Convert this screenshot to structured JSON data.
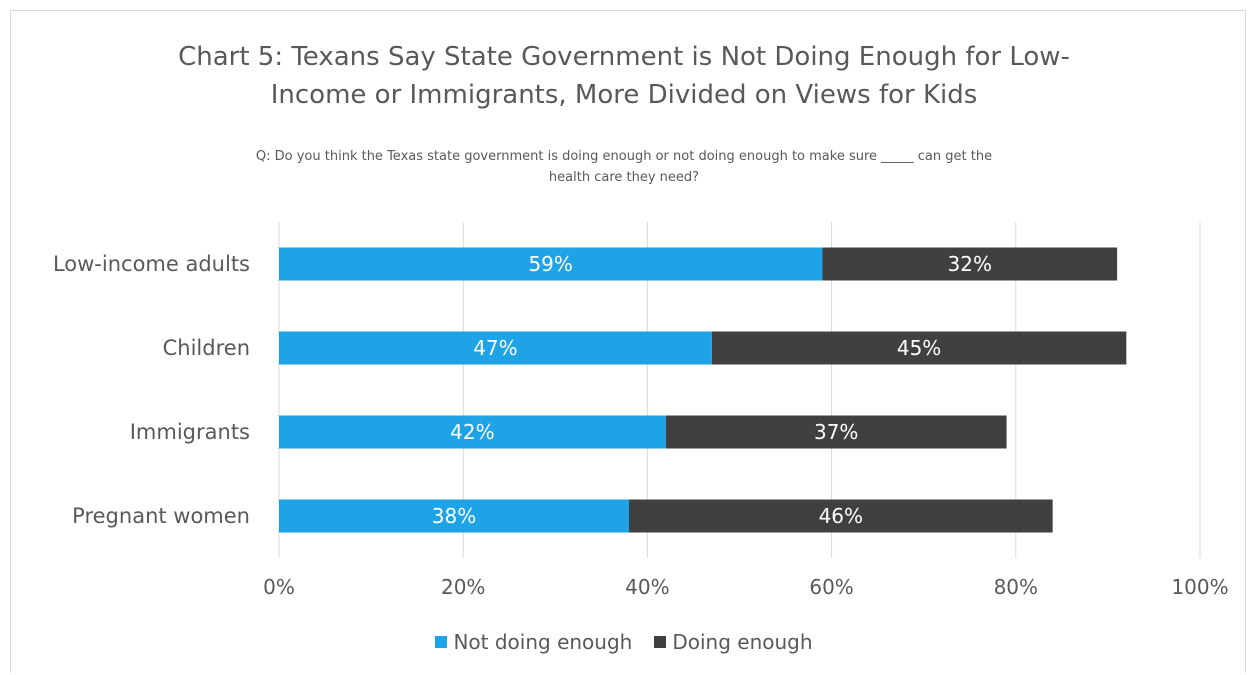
{
  "chart_data": {
    "type": "bar",
    "orientation": "horizontal",
    "stacked": true,
    "title": "Chart 5: Texans Say State Government is Not Doing Enough for Low-Income or Immigrants, More Divided on Views for Kids",
    "title_lines": [
      "Chart 5: Texans Say State Government is Not Doing Enough for Low-",
      "Income or Immigrants, More Divided on Views for Kids"
    ],
    "subtitle": "Q: Do you think the Texas state government is doing enough or not doing enough to make sure _____ can get the health care they need?",
    "subtitle_lines": [
      "Q: Do you think the Texas state government is doing enough or not doing enough to make sure _____ can get the",
      "health care they need?"
    ],
    "categories": [
      "Low-income adults",
      "Children",
      "Immigrants",
      "Pregnant women"
    ],
    "series": [
      {
        "name": "Not doing enough",
        "color": "#1ea4e6",
        "values": [
          59,
          47,
          42,
          38
        ],
        "labels": [
          "59%",
          "47%",
          "42%",
          "38%"
        ]
      },
      {
        "name": "Doing enough",
        "color": "#404040",
        "values": [
          32,
          45,
          37,
          46
        ],
        "labels": [
          "32%",
          "45%",
          "37%",
          "46%"
        ]
      }
    ],
    "xlim": [
      0,
      100
    ],
    "xticks": [
      0,
      20,
      40,
      60,
      80,
      100
    ],
    "xtick_labels": [
      "0%",
      "20%",
      "40%",
      "60%",
      "80%",
      "100%"
    ],
    "grid": true,
    "legend_position": "bottom"
  }
}
